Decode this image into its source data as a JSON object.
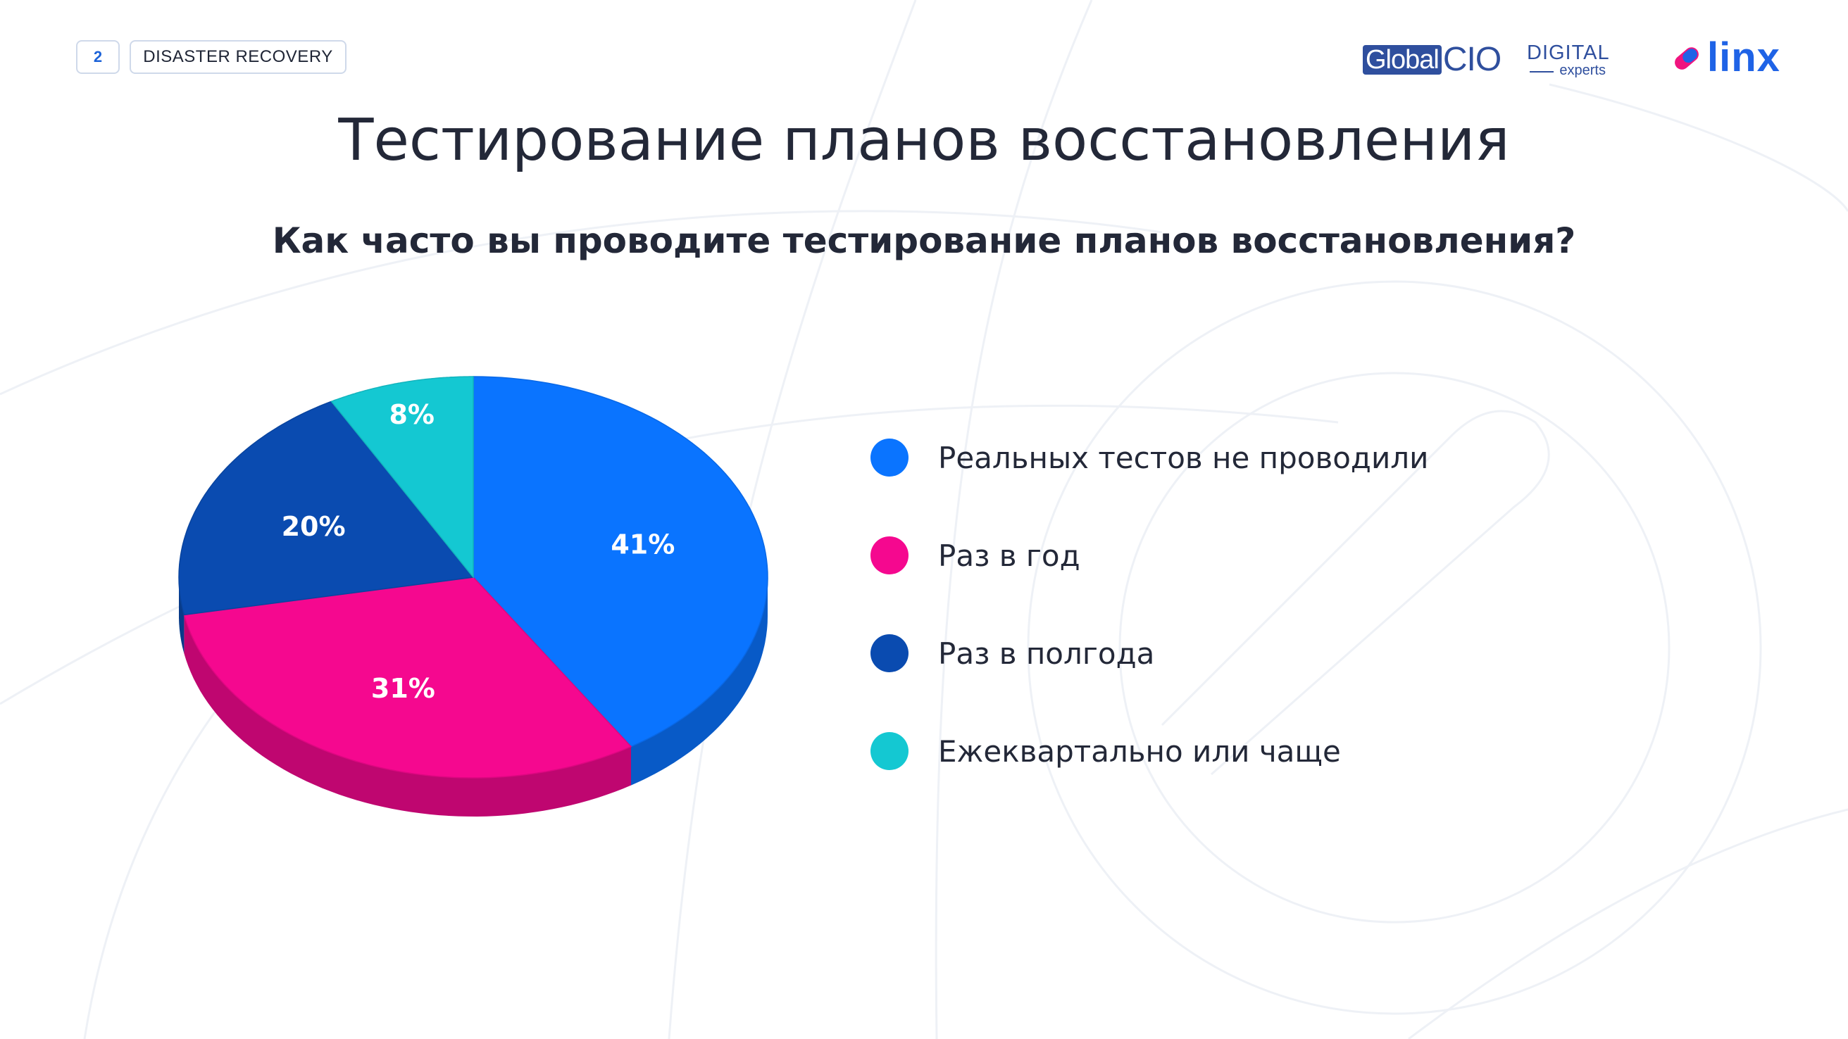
{
  "header": {
    "slide_number": "2",
    "section_tag": "DISASTER RECOVERY"
  },
  "logos": {
    "globalcio_part1": "Global",
    "globalcio_part2": "CIO",
    "digital_line1": "DIGITAL",
    "digital_line2": "experts",
    "linx": "linx"
  },
  "title": "Тестирование планов восстановления",
  "subtitle": "Как часто вы проводите тестирование планов восстановления?",
  "colors": {
    "blue": "#0a74ff",
    "pink": "#f5088f",
    "navy": "#0a4bb0",
    "cyan": "#14c8d2",
    "logo_blue": "#2f4f9e",
    "linx_pink": "#f0147f",
    "linx_blue": "#1f63e6"
  },
  "chart_data": {
    "type": "pie",
    "title": "",
    "slices": [
      {
        "label": "Реальных тестов не проводили",
        "value": 41,
        "display": "41%",
        "color": "#0a74ff"
      },
      {
        "label": "Раз в год",
        "value": 31,
        "display": "31%",
        "color": "#f5088f"
      },
      {
        "label": "Раз в полгода",
        "value": 20,
        "display": "20%",
        "color": "#0a4bb0"
      },
      {
        "label": "Ежеквартально или чаще",
        "value": 8,
        "display": "8%",
        "color": "#14c8d2"
      }
    ],
    "legend_placement": "right"
  }
}
